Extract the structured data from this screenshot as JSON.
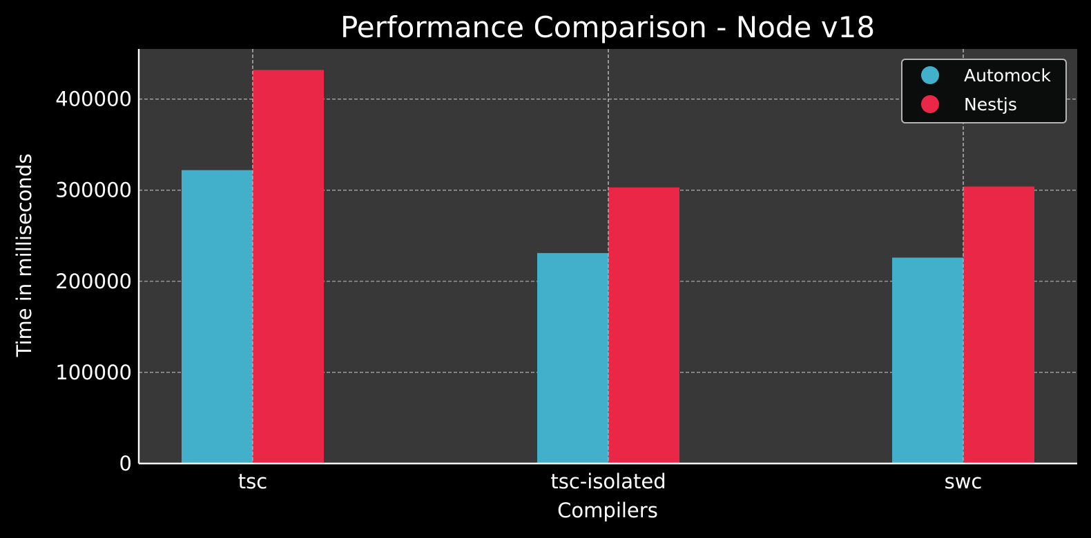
{
  "chart_data": {
    "type": "bar",
    "title": "Performance Comparison - Node v18",
    "xlabel": "Compilers",
    "ylabel": "Time in milliseconds",
    "categories": [
      "tsc",
      "tsc-isolated",
      "swc"
    ],
    "series": [
      {
        "name": "Automock",
        "color": "#42afcb",
        "values": [
          322000,
          231000,
          226000
        ]
      },
      {
        "name": "Nestjs",
        "color": "#ea2746",
        "values": [
          432000,
          303000,
          304000
        ]
      }
    ],
    "ylim": [
      0,
      455000
    ],
    "yticks": [
      0,
      100000,
      200000,
      300000,
      400000
    ],
    "ytick_labels": [
      "0",
      "100000",
      "200000",
      "300000",
      "400000"
    ],
    "grid": true,
    "legend_position": "top-right",
    "colors": {
      "page_background": "#000000",
      "plot_background": "#383838",
      "legend_background": "#0b0d0d",
      "legend_border": "#b5b5b5"
    }
  }
}
